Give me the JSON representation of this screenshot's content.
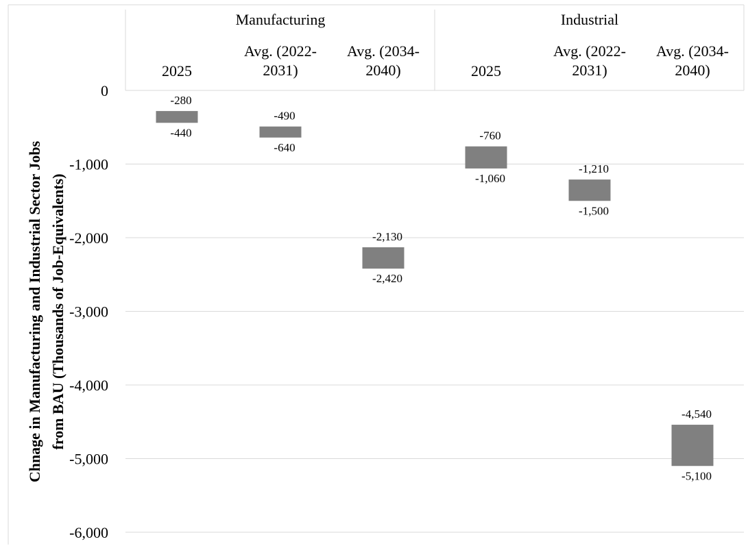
{
  "chart_data": {
    "type": "bar",
    "subtype": "floating-range",
    "groups": [
      {
        "name": "Manufacturing",
        "categories": [
          "2025",
          "Avg. (2022-2031)",
          "Avg. (2034-2040)"
        ]
      },
      {
        "name": "Industrial",
        "categories": [
          "2025",
          "Avg. (2022-2031)",
          "Avg. (2034-2040)"
        ]
      }
    ],
    "category_label_lines": [
      [
        "2025"
      ],
      [
        "Avg. (2022-",
        "2031)"
      ],
      [
        "Avg. (2034-",
        "2040)"
      ]
    ],
    "series": [
      {
        "name": "",
        "ranges": [
          {
            "group": "Manufacturing",
            "category": "2025",
            "high": -280,
            "low": -440,
            "high_label": "-280",
            "low_label": "-440"
          },
          {
            "group": "Manufacturing",
            "category": "Avg. (2022-2031)",
            "high": -490,
            "low": -640,
            "high_label": "-490",
            "low_label": "-640"
          },
          {
            "group": "Manufacturing",
            "category": "Avg. (2034-2040)",
            "high": -2130,
            "low": -2420,
            "high_label": "-2,130",
            "low_label": "-2,420"
          },
          {
            "group": "Industrial",
            "category": "2025",
            "high": -760,
            "low": -1060,
            "high_label": "-760",
            "low_label": "-1,060"
          },
          {
            "group": "Industrial",
            "category": "Avg. (2022-2031)",
            "high": -1210,
            "low": -1500,
            "high_label": "-1,210",
            "low_label": "-1,500"
          },
          {
            "group": "Industrial",
            "category": "Avg. (2034-2040)",
            "high": -4540,
            "low": -5100,
            "high_label": "-4,540",
            "low_label": "-5,100"
          }
        ]
      }
    ],
    "ylabel_lines": [
      "Chnage in Manufacturing and Industrial Sector Jobs",
      "from BAU (Thousands of Job-Equivalents)"
    ],
    "ylim": [
      -6000,
      0
    ],
    "yticks": [
      0,
      -1000,
      -2000,
      -3000,
      -4000,
      -5000,
      -6000
    ],
    "ytick_labels": [
      "0",
      "-1,000",
      "-2,000",
      "-3,000",
      "-4,000",
      "-5,000",
      "-6,000"
    ],
    "grid": true,
    "legend": "none",
    "bar_color": "#808080",
    "grid_color": "#d9d9d9"
  }
}
